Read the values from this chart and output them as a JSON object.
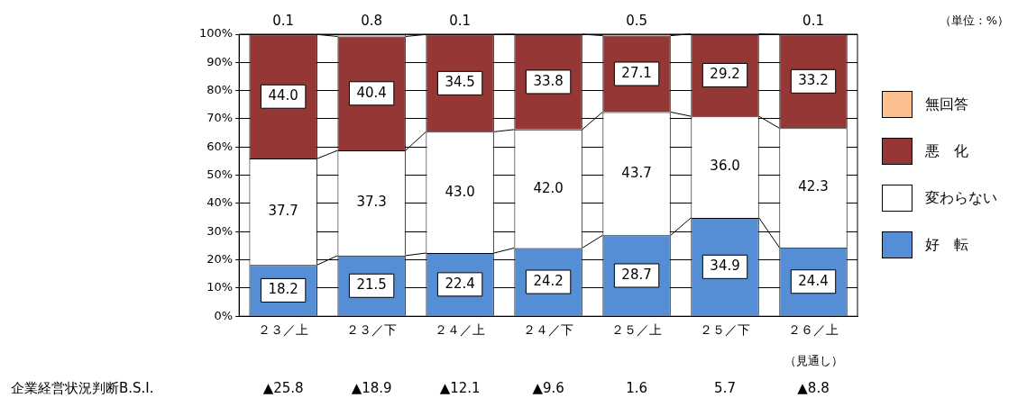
{
  "chart_data": {
    "type": "bar",
    "stacked": true,
    "categories": [
      "２３／上",
      "２３／下",
      "２４／上",
      "２４／下",
      "２５／上",
      "２５／下",
      "２６／上"
    ],
    "series": [
      {
        "name": "好　転",
        "color": "#558ed5",
        "values": [
          18.2,
          21.5,
          22.4,
          24.2,
          28.7,
          34.9,
          24.4
        ],
        "value_labels": [
          "18.2",
          "21.5",
          "22.4",
          "24.2",
          "28.7",
          "34.9",
          "24.4"
        ]
      },
      {
        "name": "変わらない",
        "color": "#ffffff",
        "values": [
          37.7,
          37.3,
          43.0,
          42.0,
          43.7,
          36.0,
          42.3
        ],
        "value_labels": [
          "37.7",
          "37.3",
          "43.0",
          "42.0",
          "43.7",
          "36.0",
          "42.3"
        ]
      },
      {
        "name": "悪　化",
        "color": "#953735",
        "values": [
          44.0,
          40.4,
          34.5,
          33.8,
          27.1,
          29.2,
          33.2
        ],
        "value_labels": [
          "44.0",
          "40.4",
          "34.5",
          "33.8",
          "27.1",
          "29.2",
          "33.2"
        ]
      },
      {
        "name": "無回答",
        "color": "#fac090",
        "values": [
          0.1,
          0.8,
          0.1,
          0,
          0.5,
          0,
          0.1
        ],
        "value_labels": [
          "0.1",
          "0.8",
          "0.1",
          null,
          "0.5",
          null,
          "0.1"
        ]
      }
    ],
    "ylim": [
      0,
      100
    ],
    "yticks": [
      {
        "value": 0,
        "label": "0%"
      },
      {
        "value": 10,
        "label": "10%"
      },
      {
        "value": 20,
        "label": "20%"
      },
      {
        "value": 30,
        "label": "30%"
      },
      {
        "value": 40,
        "label": "40%"
      },
      {
        "value": 50,
        "label": "50%"
      },
      {
        "value": 60,
        "label": "60%"
      },
      {
        "value": 70,
        "label": "70%"
      },
      {
        "value": 80,
        "label": "80%"
      },
      {
        "value": 90,
        "label": "90%"
      },
      {
        "value": 100,
        "label": "100%"
      }
    ],
    "grid": "y",
    "legend": "right",
    "annotations": [
      "（単位：%）",
      "（見通し）",
      "企業経営状況判断B.S.I.",
      "▲25.8",
      "▲18.9",
      "▲12.1",
      "▲9.6",
      "1.6",
      "5.7",
      "▲8.8"
    ]
  }
}
